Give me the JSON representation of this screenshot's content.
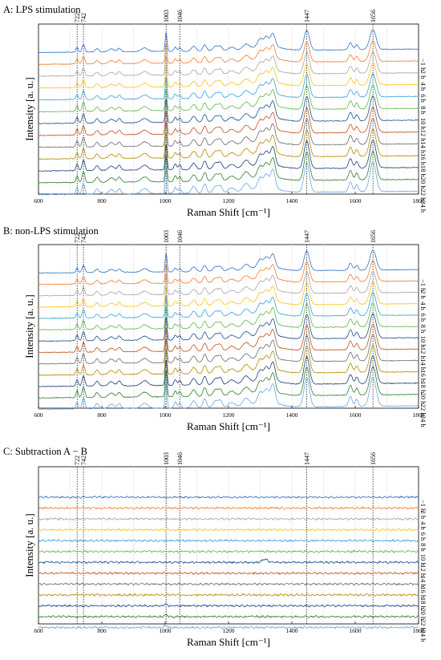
{
  "figure": {
    "colors": [
      "#3274c8",
      "#f47d2f",
      "#a6a6a6",
      "#fcc319",
      "#33a3d9",
      "#5fb64a",
      "#1f4e8c",
      "#c0521b",
      "#6b6b6b",
      "#b58a00",
      "#1f3f78",
      "#2f7d2f",
      "#6aa6e2"
    ]
  },
  "chart_data": [
    {
      "type": "line",
      "title": "A: LPS stimulation",
      "xlabel": "Raman Shift [cm⁻¹]",
      "ylabel": "Intensity [a. u.]",
      "xlim": [
        600,
        1800
      ],
      "xticks": [
        "600",
        "800",
        "1000",
        "1200",
        "1400",
        "1600",
        "1800"
      ],
      "peak_labels": [
        "722",
        "742",
        "1003",
        "1046",
        "1447",
        "1656"
      ],
      "peak_positions": [
        722,
        742,
        1003,
        1046,
        1447,
        1656
      ],
      "series_labels": [
        "−1 h",
        "2 h",
        "4 h",
        "6 h",
        "8 h",
        "10 h",
        "12 h",
        "14 h",
        "16 h",
        "18 h",
        "20 h",
        "22 h",
        "24 h"
      ],
      "kind": "spectra"
    },
    {
      "type": "line",
      "title": "B: non-LPS stimulation",
      "xlabel": "Raman Shift [cm⁻¹]",
      "ylabel": "Intensity [a. u.]",
      "xlim": [
        600,
        1800
      ],
      "xticks": [
        "600",
        "800",
        "1000",
        "1200",
        "1400",
        "1600",
        "1800"
      ],
      "peak_labels": [
        "722",
        "742",
        "1003",
        "1046",
        "1447",
        "1656"
      ],
      "peak_positions": [
        722,
        742,
        1003,
        1046,
        1447,
        1656
      ],
      "series_labels": [
        "−1 h",
        "2 h",
        "4 h",
        "6 h",
        "8 h",
        "10 h",
        "12 h",
        "14 h",
        "16 h",
        "18 h",
        "20 h",
        "22 h",
        "24 h"
      ],
      "kind": "spectra"
    },
    {
      "type": "line",
      "title": "C: Subtraction A − B",
      "xlabel": "Raman Shift [cm⁻¹]",
      "ylabel": "Intensity [a. u.]",
      "xlim": [
        600,
        1800
      ],
      "xticks": [
        "600",
        "800",
        "1000",
        "1200",
        "1400",
        "1600",
        "1800"
      ],
      "peak_labels": [
        "722",
        "742",
        "1003",
        "1046",
        "1447",
        "1656"
      ],
      "peak_positions": [
        722,
        742,
        1003,
        1046,
        1447,
        1656
      ],
      "series_labels": [
        "−1 h",
        "2 h",
        "4 h",
        "6 h",
        "8 h",
        "10 h",
        "12 h",
        "14 h",
        "16 h",
        "18 h",
        "20 h",
        "22 h",
        "24 h"
      ],
      "kind": "difference"
    }
  ]
}
